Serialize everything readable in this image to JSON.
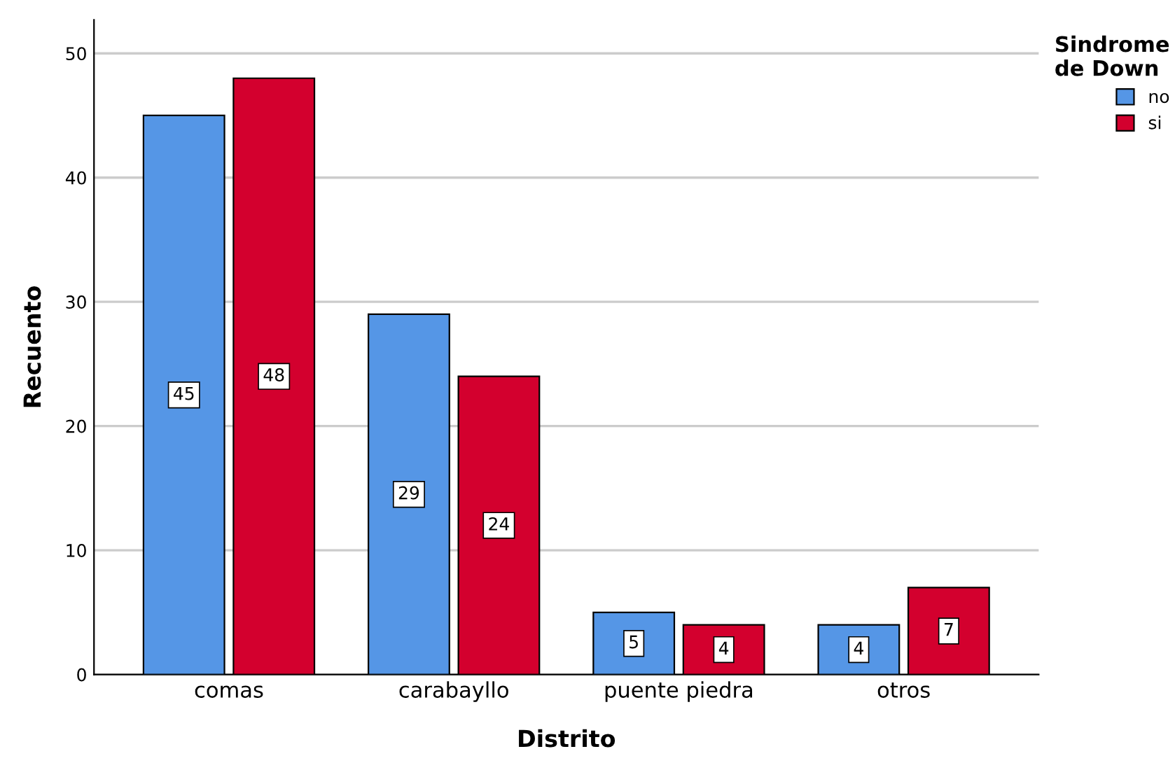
{
  "chart_data": {
    "type": "bar",
    "xlabel": "Distrito",
    "ylabel": "Recuento",
    "legend_title": "Sindrome\nde Down",
    "categories": [
      "comas",
      "carabayllo",
      "puente piedra",
      "otros"
    ],
    "series": [
      {
        "name": "no",
        "color": "#5596e6",
        "values": [
          45,
          29,
          5,
          4
        ]
      },
      {
        "name": "si",
        "color": "#d3002e",
        "values": [
          48,
          24,
          4,
          7
        ]
      }
    ],
    "ylim": [
      0,
      52.7
    ],
    "yticks": [
      0,
      10,
      20,
      30,
      40,
      50
    ],
    "grid": "y",
    "legend": "top right",
    "data_labels": true
  }
}
